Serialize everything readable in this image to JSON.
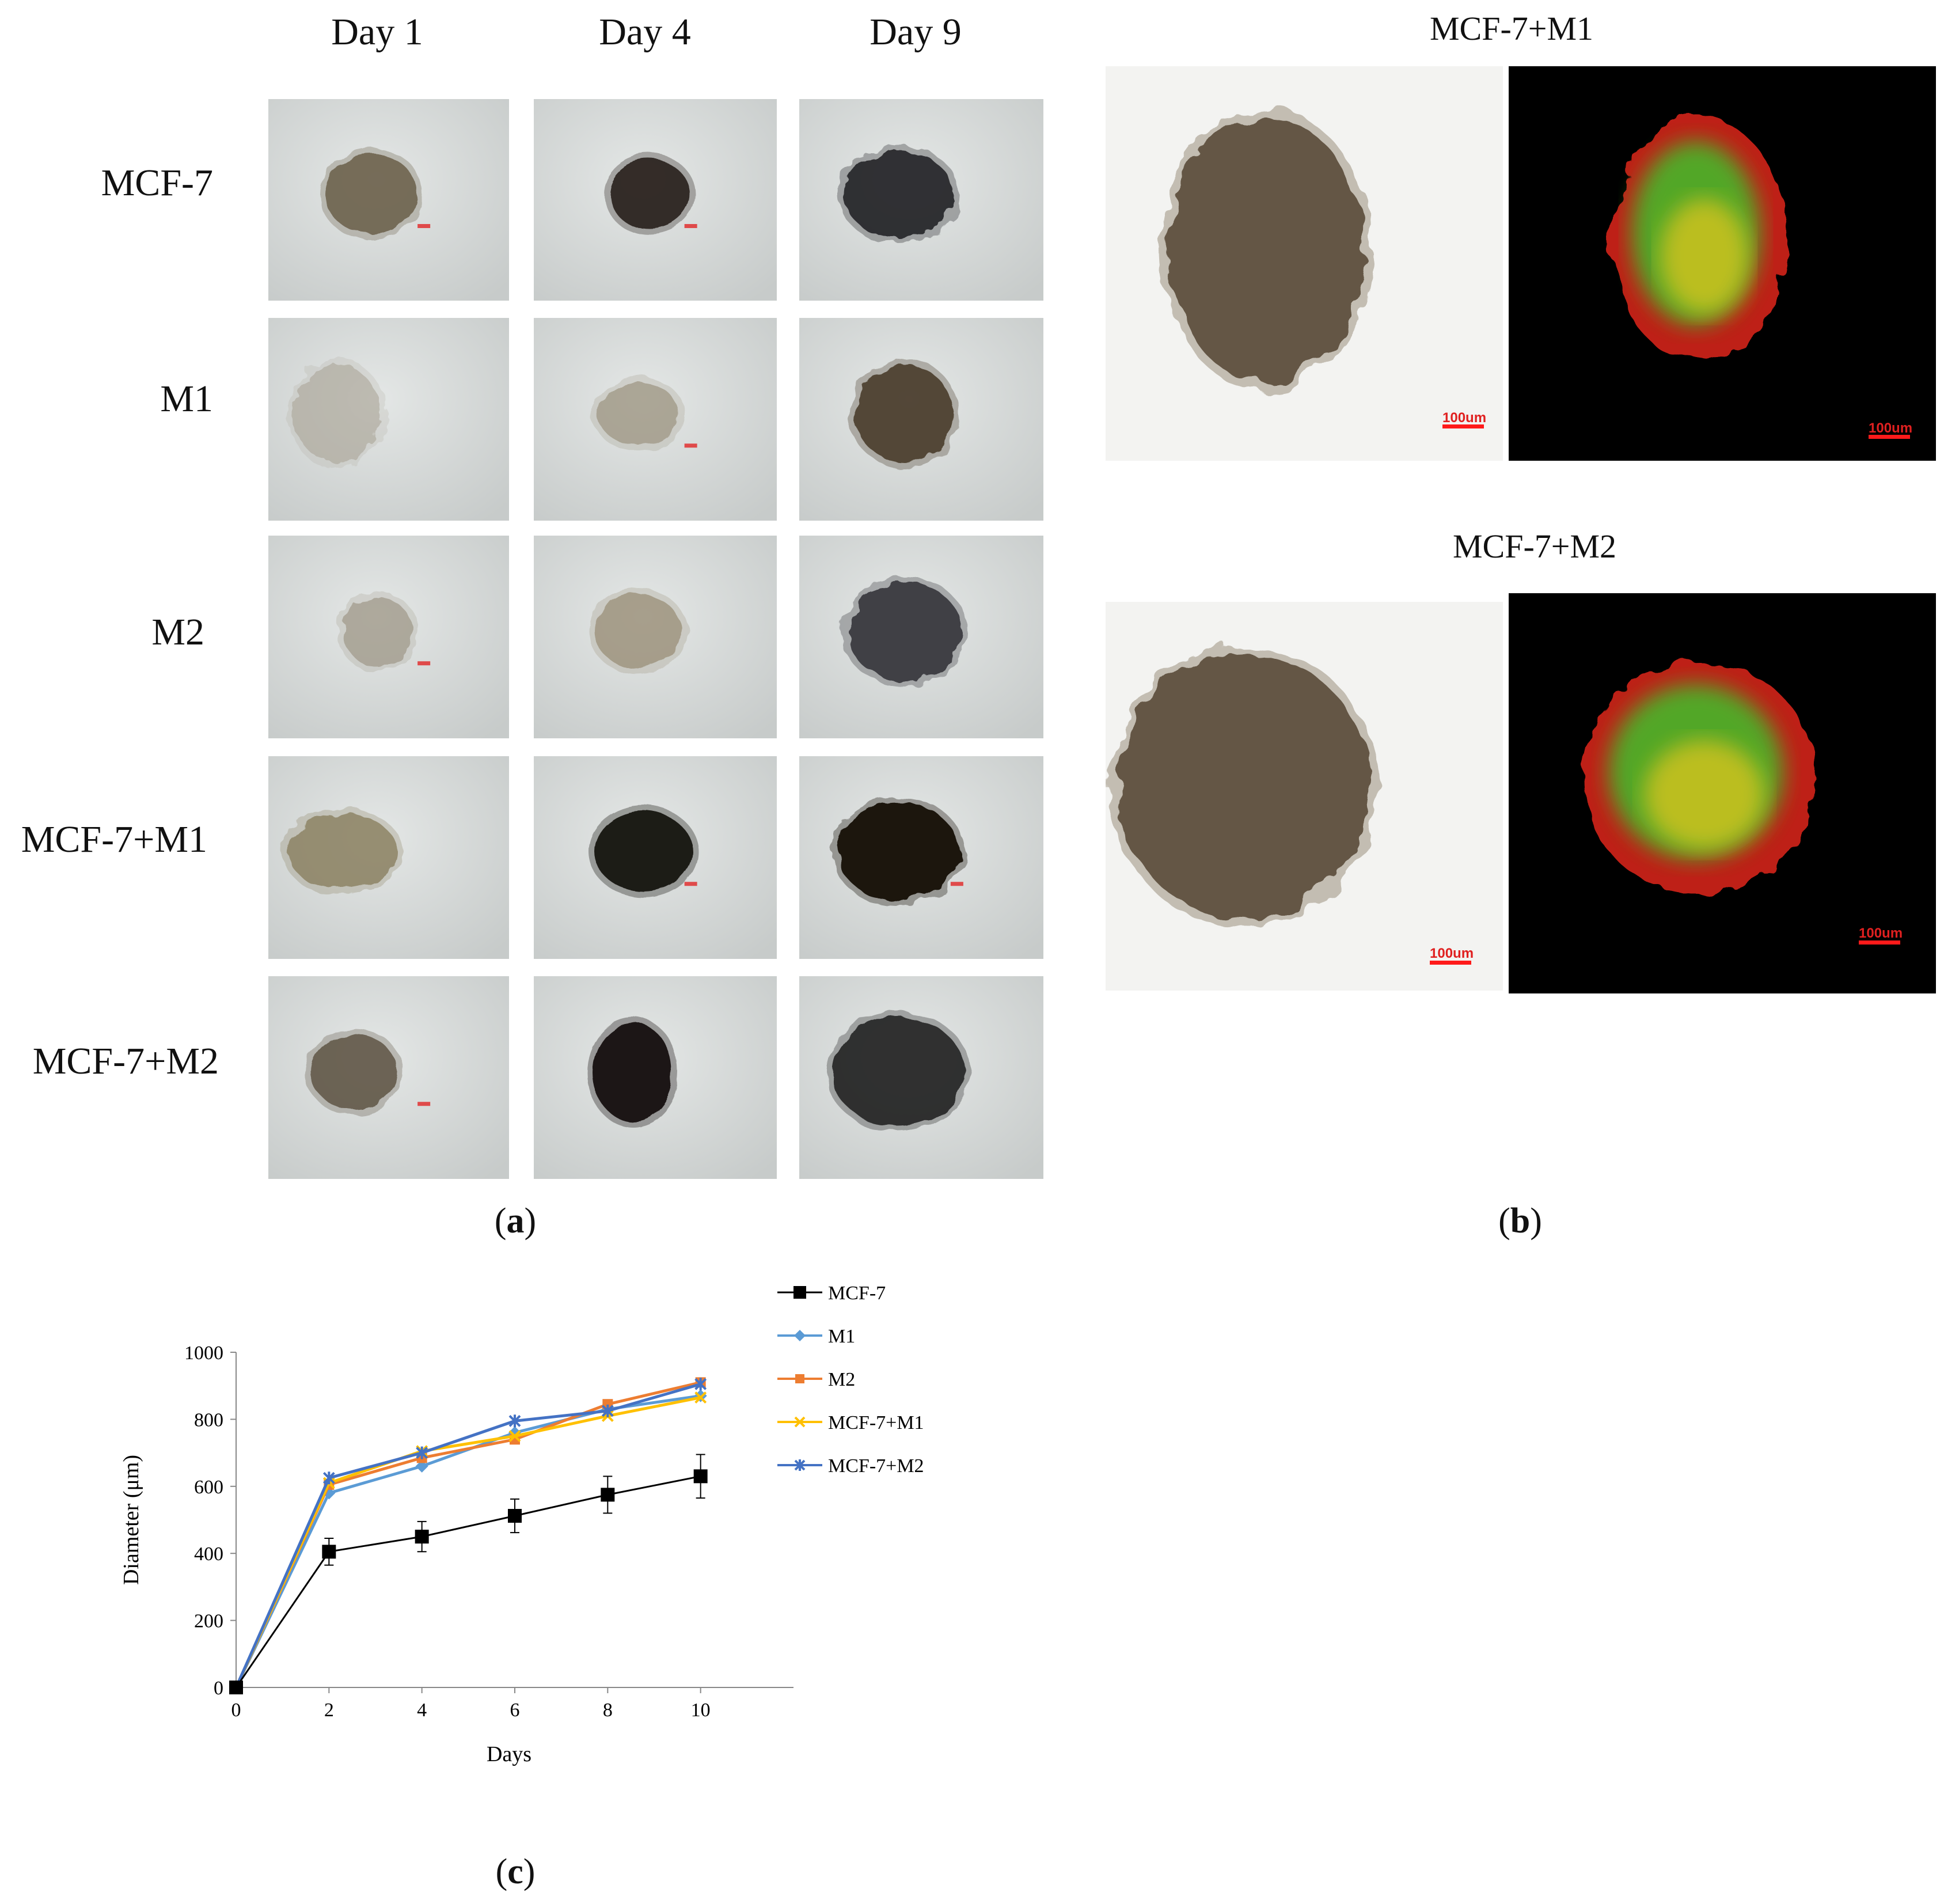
{
  "panel_a": {
    "columns": [
      "Day 1",
      "Day 4",
      "Day 9"
    ],
    "rows": [
      "MCF-7",
      "M1",
      "M2",
      "MCF-7+M1",
      "MCF-7+M2"
    ],
    "label_open": "(",
    "label_letter": "a",
    "label_close": ")"
  },
  "panel_b": {
    "titles": [
      "MCF-7+M1",
      "MCF-7+M2"
    ],
    "scale_bar_text": "100um",
    "label_open": "(",
    "label_letter": "b",
    "label_close": ")"
  },
  "panel_c": {
    "label_open": "(",
    "label_letter": "c",
    "label_close": ")"
  },
  "colors": {
    "MCF-7": "#000000",
    "M1": "#5b9bd5",
    "M2": "#ed7d31",
    "MCF-7+M1": "#ffc000",
    "MCF-7+M2": "#4472c4",
    "fluor_green": "#3fbf2a",
    "fluor_red": "#e0261c",
    "scale_bar": "#ff1a1a"
  },
  "chart_data": {
    "type": "line",
    "xlabel": "Days",
    "ylabel": "Diameter (μm)",
    "xlim": [
      0,
      12
    ],
    "ylim": [
      0,
      1000
    ],
    "x_ticks": [
      0,
      2,
      4,
      6,
      8,
      10
    ],
    "y_ticks": [
      0,
      200,
      400,
      600,
      800,
      1000
    ],
    "legend_position": "top-right",
    "x": [
      0,
      2,
      4,
      6,
      8,
      10
    ],
    "series": [
      {
        "name": "MCF-7",
        "marker": "square",
        "values": [
          0,
          405,
          450,
          512,
          575,
          630
        ],
        "error": [
          0,
          40,
          45,
          50,
          55,
          65
        ]
      },
      {
        "name": "M1",
        "marker": "diamond",
        "values": [
          0,
          580,
          660,
          760,
          830,
          870
        ]
      },
      {
        "name": "M2",
        "marker": "square",
        "values": [
          0,
          605,
          685,
          740,
          845,
          910
        ]
      },
      {
        "name": "MCF-7+M1",
        "marker": "x",
        "values": [
          0,
          610,
          705,
          750,
          810,
          865
        ]
      },
      {
        "name": "MCF-7+M2",
        "marker": "star",
        "values": [
          0,
          625,
          700,
          795,
          825,
          905
        ]
      }
    ]
  }
}
